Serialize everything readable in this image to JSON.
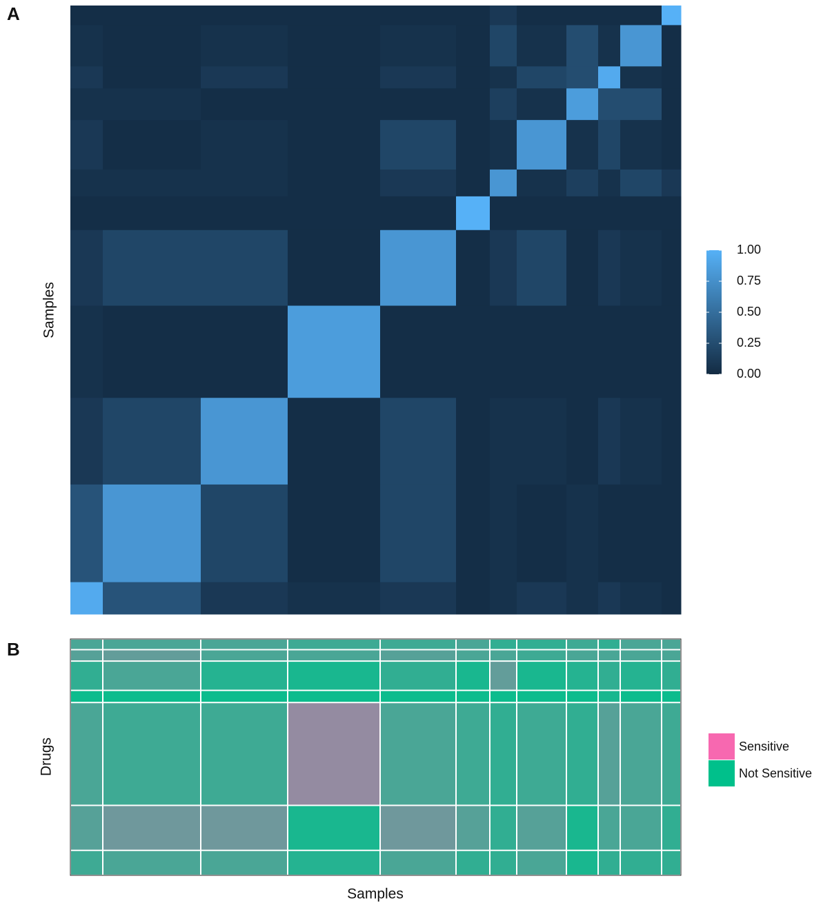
{
  "chart_data": [
    {
      "type": "consensus-heatmap",
      "panel_label": "A",
      "y_label": "Samples",
      "cluster_sizes": [
        47,
        142,
        126,
        134,
        110,
        49,
        39,
        72,
        46,
        32,
        60,
        28
      ],
      "values": [
        [
          0.95,
          0.3,
          0.1,
          0.05,
          0.1,
          0.02,
          0.05,
          0.1,
          0.05,
          0.1,
          0.05,
          0.02
        ],
        [
          0.3,
          0.8,
          0.2,
          0.02,
          0.2,
          0.02,
          0.05,
          0.02,
          0.05,
          0.02,
          0.02,
          0.02
        ],
        [
          0.1,
          0.2,
          0.8,
          0.02,
          0.2,
          0.02,
          0.05,
          0.05,
          0.02,
          0.1,
          0.05,
          0.02
        ],
        [
          0.05,
          0.02,
          0.02,
          0.85,
          0.02,
          0.02,
          0.02,
          0.02,
          0.02,
          0.02,
          0.02,
          0.02
        ],
        [
          0.1,
          0.2,
          0.2,
          0.02,
          0.8,
          0.02,
          0.1,
          0.2,
          0.02,
          0.1,
          0.05,
          0.02
        ],
        [
          0.02,
          0.02,
          0.02,
          0.02,
          0.02,
          1.0,
          0.02,
          0.02,
          0.02,
          0.02,
          0.02,
          0.02
        ],
        [
          0.05,
          0.05,
          0.05,
          0.02,
          0.1,
          0.02,
          0.8,
          0.05,
          0.15,
          0.05,
          0.2,
          0.1
        ],
        [
          0.1,
          0.02,
          0.05,
          0.02,
          0.2,
          0.02,
          0.05,
          0.8,
          0.05,
          0.2,
          0.05,
          0.02
        ],
        [
          0.05,
          0.05,
          0.02,
          0.02,
          0.02,
          0.02,
          0.15,
          0.05,
          0.85,
          0.25,
          0.25,
          0.02
        ],
        [
          0.1,
          0.02,
          0.1,
          0.02,
          0.1,
          0.02,
          0.05,
          0.2,
          0.25,
          0.95,
          0.05,
          0.02
        ],
        [
          0.05,
          0.02,
          0.05,
          0.02,
          0.05,
          0.02,
          0.2,
          0.05,
          0.25,
          0.05,
          0.8,
          0.02
        ],
        [
          0.02,
          0.02,
          0.02,
          0.02,
          0.02,
          0.02,
          0.1,
          0.02,
          0.02,
          0.02,
          0.02,
          1.0
        ]
      ],
      "colorscale": [
        "#132b43",
        "#56b1f7"
      ],
      "clim": [
        0,
        1
      ],
      "cticks": [
        {
          "value": 0,
          "label": "0.00"
        },
        {
          "value": 0.25,
          "label": "0.25"
        },
        {
          "value": 0.5,
          "label": "0.50"
        },
        {
          "value": 0.75,
          "label": "0.75"
        },
        {
          "value": 1,
          "label": "1.00"
        }
      ]
    },
    {
      "type": "binary-heatmap",
      "panel_label": "B",
      "x_label": "Samples",
      "y_label": "Drugs",
      "column_sizes": [
        47,
        142,
        126,
        134,
        110,
        49,
        39,
        72,
        46,
        32,
        60,
        28
      ],
      "row_group_sizes": [
        15,
        16,
        41,
        17,
        144,
        63,
        35
      ],
      "values": [
        [
          0.3,
          0.3,
          0.3,
          0.25,
          0.25,
          0.3,
          0.2,
          0.2,
          0.25,
          0.2,
          0.3,
          0.3
        ],
        [
          0.35,
          0.4,
          0.3,
          0.3,
          0.35,
          0.3,
          0.3,
          0.25,
          0.3,
          0.3,
          0.3,
          0.3
        ],
        [
          0.2,
          0.3,
          0.15,
          0.1,
          0.2,
          0.1,
          0.4,
          0.1,
          0.15,
          0.2,
          0.15,
          0.2
        ],
        [
          0.05,
          0.05,
          0.05,
          0.05,
          0.05,
          0.05,
          0.05,
          0.05,
          0.05,
          0.1,
          0.05,
          0.05
        ],
        [
          0.3,
          0.25,
          0.25,
          0.6,
          0.3,
          0.25,
          0.2,
          0.25,
          0.2,
          0.35,
          0.3,
          0.25
        ],
        [
          0.35,
          0.45,
          0.45,
          0.1,
          0.45,
          0.35,
          0.2,
          0.35,
          0.1,
          0.3,
          0.3,
          0.2
        ],
        [
          0.25,
          0.3,
          0.3,
          0.15,
          0.3,
          0.2,
          0.2,
          0.3,
          0.1,
          0.2,
          0.2,
          0.2
        ]
      ],
      "series": [
        {
          "name": "Sensitive",
          "color": "#f768b0"
        },
        {
          "name": "Not Sensitive",
          "color": "#00c08b"
        }
      ]
    }
  ]
}
